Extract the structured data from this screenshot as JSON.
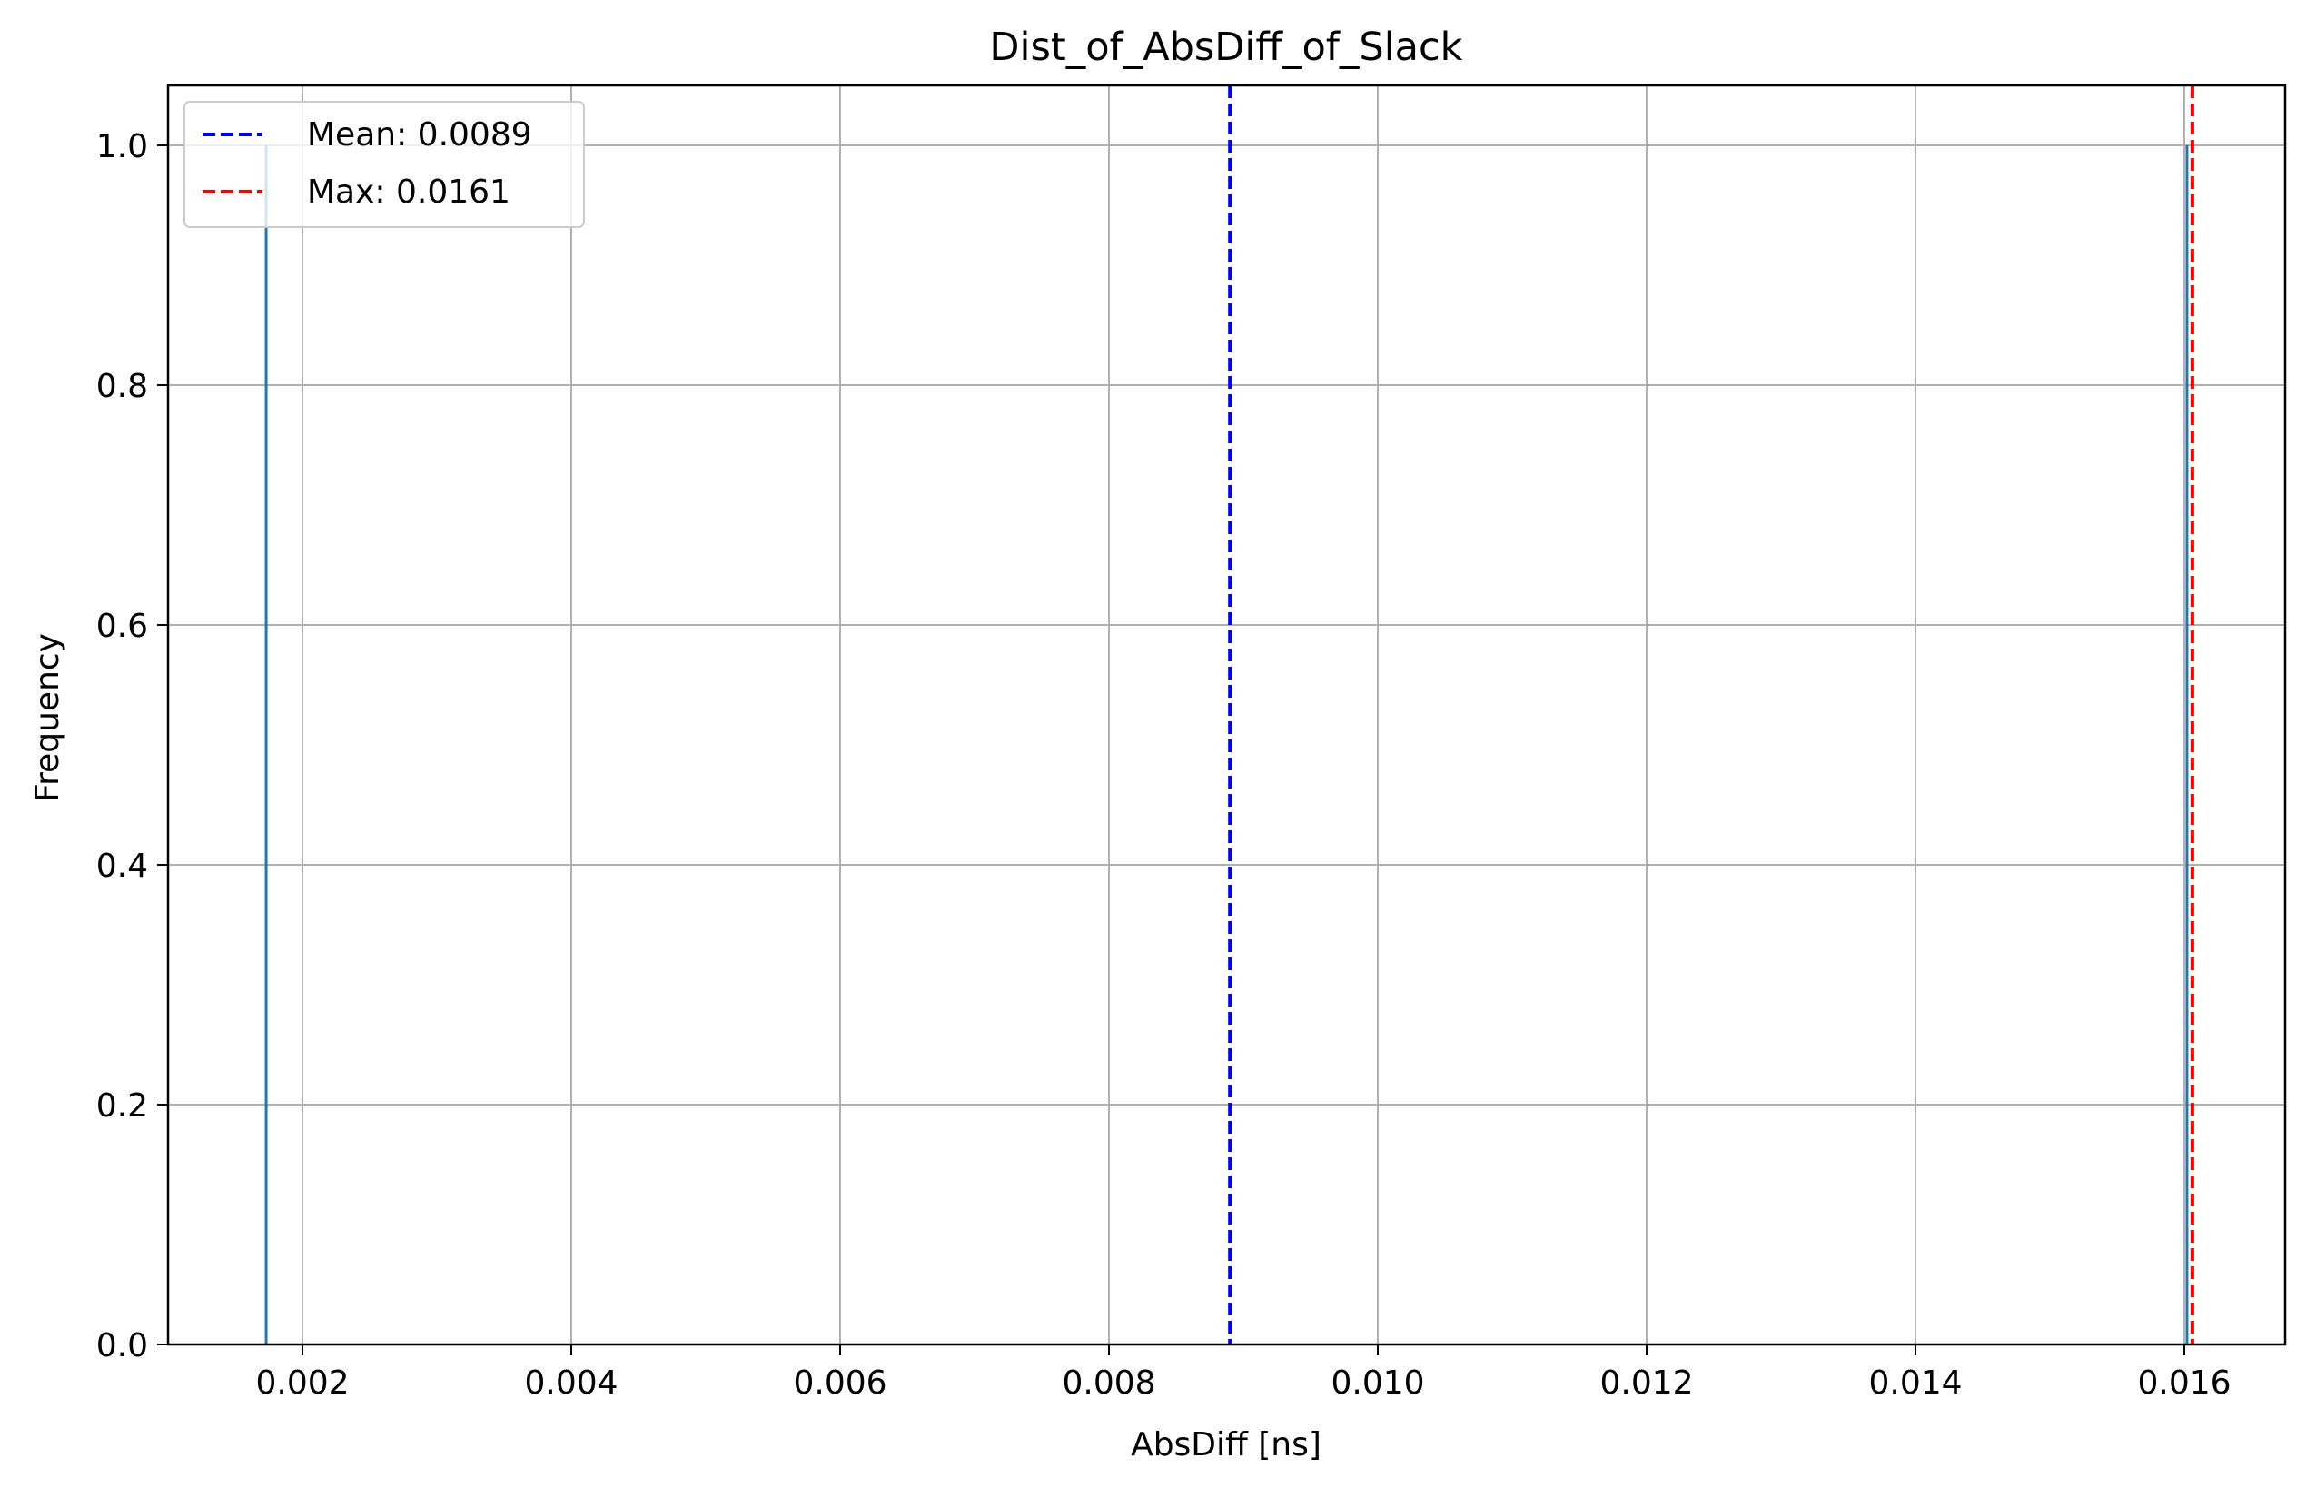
{
  "chart_data": {
    "type": "histogram",
    "title": "Dist_of_AbsDiff_of_Slack",
    "xlabel": "AbsDiff [ns]",
    "ylabel": "Frequency",
    "xlim": [
      0.001,
      0.01675
    ],
    "ylim": [
      0.0,
      1.05
    ],
    "grid": true,
    "legend_position": "upper-left",
    "x_ticks": [
      0.002,
      0.004,
      0.006,
      0.008,
      0.01,
      0.012,
      0.014,
      0.016
    ],
    "x_tick_labels": [
      "0.002",
      "0.004",
      "0.006",
      "0.008",
      "0.010",
      "0.012",
      "0.014",
      "0.016"
    ],
    "y_ticks": [
      0.0,
      0.2,
      0.4,
      0.6,
      0.8,
      1.0
    ],
    "y_tick_labels": [
      "0.0",
      "0.2",
      "0.4",
      "0.6",
      "0.8",
      "1.0"
    ],
    "bars": [
      {
        "x_start": 0.00172,
        "x_end": 0.00174,
        "count": 1
      },
      {
        "x_start": 0.01601,
        "x_end": 0.01603,
        "count": 1
      }
    ],
    "bar_color": "#1f77b4",
    "reference_lines": [
      {
        "label": "Mean: 0.0089",
        "x": 0.0089,
        "color": "#0000ff",
        "style": "dashed"
      },
      {
        "label": "Max: 0.0161",
        "x": 0.01606,
        "color": "#ff0000",
        "style": "dashed"
      }
    ]
  }
}
